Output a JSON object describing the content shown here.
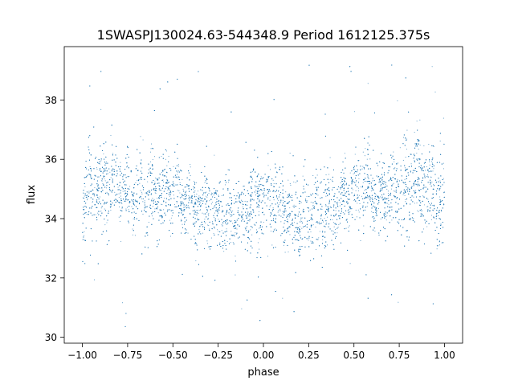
{
  "chart_data": {
    "type": "scatter",
    "title": "1SWASPJ130024.63-544348.9 Period 1612125.375s",
    "xlabel": "phase",
    "ylabel": "flux",
    "xlim": [
      -1.1,
      1.1
    ],
    "ylim": [
      29.8,
      39.8
    ],
    "x_ticks": [
      -1.0,
      -0.75,
      -0.5,
      -0.25,
      0.0,
      0.25,
      0.5,
      0.75,
      1.0
    ],
    "x_tick_labels": [
      "−1.00",
      "−0.75",
      "−0.50",
      "−0.25",
      "0.00",
      "0.25",
      "0.50",
      "0.75",
      "1.00"
    ],
    "y_ticks": [
      30,
      32,
      34,
      36,
      38
    ],
    "y_tick_labels": [
      "30",
      "32",
      "34",
      "36",
      "38"
    ],
    "grid": false,
    "legend": "none",
    "marker_color": "#1f77b4",
    "series": [
      {
        "description_of_trend": "phase-folded light curve, mirrored about phase 0",
        "phase_profile": {
          "x": [
            0.0,
            0.05,
            0.1,
            0.15,
            0.2,
            0.25,
            0.3,
            0.35,
            0.4,
            0.45,
            0.5,
            0.55,
            0.6,
            0.65,
            0.7,
            0.75,
            0.8,
            0.85,
            0.9,
            0.95,
            1.0
          ],
          "median_flux": [
            34.9,
            34.5,
            34.3,
            34.1,
            34.0,
            34.2,
            34.3,
            34.3,
            34.5,
            34.7,
            34.9,
            35.0,
            34.9,
            34.8,
            34.9,
            35.0,
            35.3,
            35.2,
            35.0,
            34.8,
            34.5
          ],
          "scatter_sigma": [
            0.7,
            0.7,
            0.6,
            0.6,
            0.6,
            0.6,
            0.7,
            0.6,
            0.5,
            0.5,
            0.6,
            0.6,
            0.6,
            0.6,
            0.6,
            0.6,
            0.8,
            0.8,
            0.7,
            0.7,
            0.8
          ]
        }
      }
    ]
  }
}
